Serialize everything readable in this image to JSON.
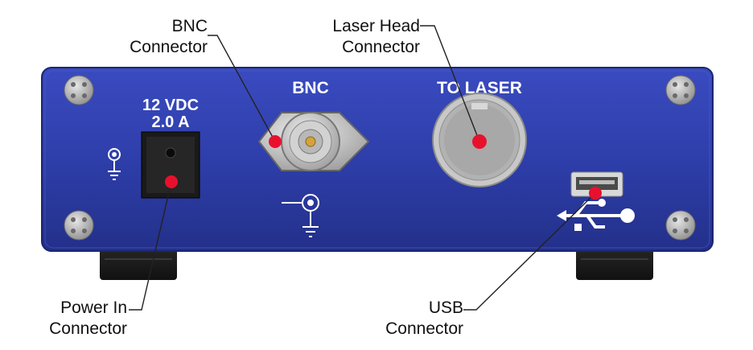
{
  "callouts": {
    "bnc": {
      "line1": "BNC",
      "line2": "Connector"
    },
    "laser_head": {
      "line1": "Laser Head",
      "line2": "Connector"
    },
    "power_in": {
      "line1": "Power In",
      "line2": "Connector"
    },
    "usb": {
      "line1": "USB",
      "line2": "Connector"
    }
  },
  "panel_labels": {
    "voltage": "12 VDC",
    "current": "2.0 A",
    "bnc": "BNC",
    "to_laser": "TO LASER"
  },
  "colors": {
    "panel_blue": "#2f3fa8",
    "marker_red": "#e8112d",
    "leader_line": "#222222"
  },
  "icons": [
    "ground-symbol-icon",
    "bnc-ground-symbol-icon",
    "usb-symbol-icon",
    "screw-icon"
  ]
}
